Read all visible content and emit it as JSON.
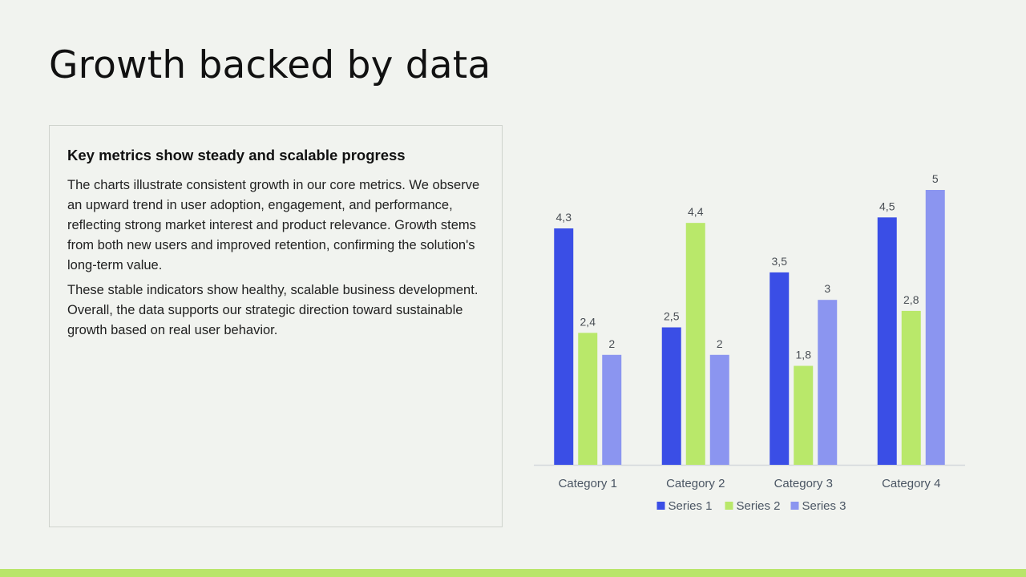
{
  "slide": {
    "title": "Growth backed by data"
  },
  "text_box": {
    "heading": "Key metrics show steady and scalable progress",
    "paragraphs": [
      "The charts illustrate consistent growth in our core metrics. We observe an upward trend in user adoption, engagement, and performance, reflecting strong market interest and product relevance. Growth stems from both new users and improved retention, confirming the solution's long-term value.",
      "These stable indicators show healthy, scalable business development. Overall, the data supports our strategic direction toward sustainable growth based on real user behavior."
    ]
  },
  "chart_data": {
    "type": "bar",
    "categories": [
      "Category 1",
      "Category 2",
      "Category 3",
      "Category 4"
    ],
    "series": [
      {
        "name": "Series 1",
        "values": [
          4.3,
          2.5,
          3.5,
          4.5
        ],
        "labels": [
          "4,3",
          "2,5",
          "3,5",
          "4,5"
        ],
        "color": "#3a4ee6"
      },
      {
        "name": "Series 2",
        "values": [
          2.4,
          4.4,
          1.8,
          2.8
        ],
        "labels": [
          "2,4",
          "4,4",
          "1,8",
          "2,8"
        ],
        "color": "#b9e86a"
      },
      {
        "name": "Series 3",
        "values": [
          2,
          2,
          3,
          5
        ],
        "labels": [
          "2",
          "2",
          "3",
          "5"
        ],
        "color": "#8b95f0"
      }
    ],
    "ylim": [
      0,
      5
    ],
    "grid": false,
    "legend_position": "bottom",
    "data_labels": true
  },
  "colors": {
    "background": "#f1f3ef",
    "accent_bar": "#b9e56a",
    "axis_label": "#4a5563"
  }
}
